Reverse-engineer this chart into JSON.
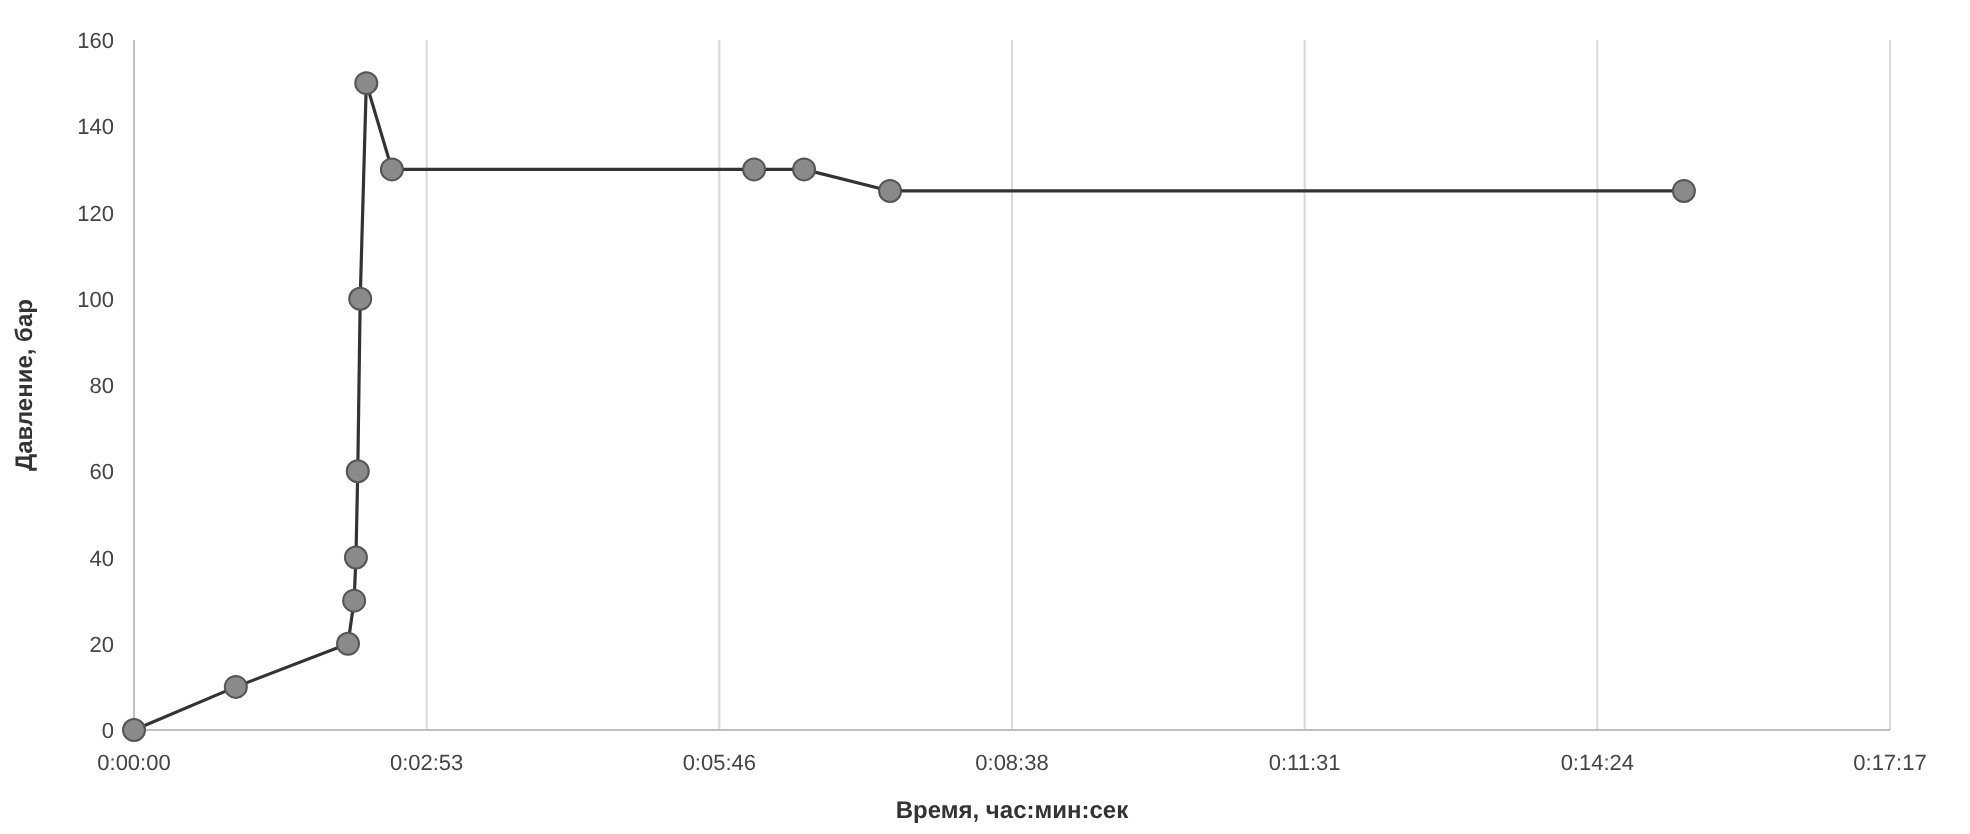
{
  "chart_data": {
    "type": "line",
    "xlabel": "Время, час:мин:сек",
    "ylabel": "Давление, бар",
    "x": [
      0,
      0.0167,
      0.0351,
      0.0361,
      0.0364,
      0.0367,
      0.0371,
      0.0381,
      0.0423,
      0.1017,
      0.1099,
      0.124,
      0.2542
    ],
    "series": [
      {
        "color": "#333333",
        "values": [
          0,
          10,
          20,
          30,
          40,
          60,
          100,
          150,
          130,
          130,
          130,
          125,
          125
        ]
      }
    ],
    "xlim": [
      0,
      0.288
    ],
    "xticks": [
      {
        "value": 0,
        "label": "0:00:00"
      },
      {
        "value": 0.048,
        "label": "0:02:53"
      },
      {
        "value": 0.096,
        "label": "0:05:46"
      },
      {
        "value": 0.144,
        "label": "0:08:38"
      },
      {
        "value": 0.192,
        "label": "0:11:31"
      },
      {
        "value": 0.24,
        "label": "0:14:24"
      },
      {
        "value": 0.288,
        "label": "0:17:17"
      }
    ],
    "ylim": [
      0,
      160
    ],
    "yticks": [
      0,
      20,
      40,
      60,
      80,
      100,
      120,
      140,
      160
    ],
    "grid": "x",
    "marker": "circle",
    "line_style": "solid"
  }
}
